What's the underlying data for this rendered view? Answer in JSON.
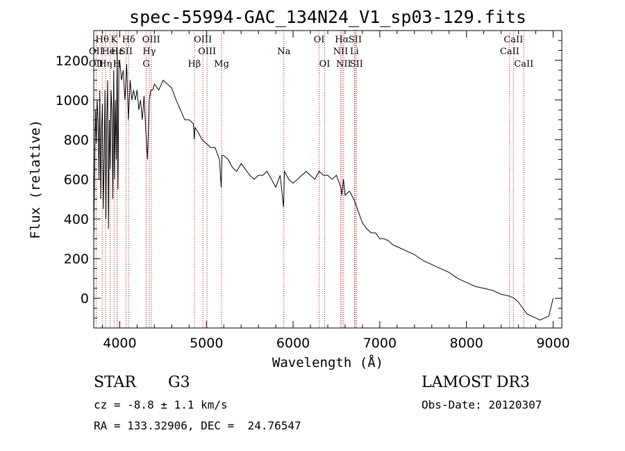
{
  "chart_data": {
    "type": "line",
    "title": "spec-55994-GAC_134N24_V1_sp03-129.fits",
    "xlabel": "Wavelength (Å)",
    "ylabel": "Flux (relative)",
    "xlim": [
      3700,
      9100
    ],
    "ylim": [
      -150,
      1350
    ],
    "xticks": [
      4000,
      5000,
      6000,
      7000,
      8000,
      9000
    ],
    "yticks": [
      0,
      200,
      400,
      600,
      800,
      1000,
      1200
    ],
    "series": [
      {
        "name": "Flux",
        "x": [
          3700,
          3710,
          3720,
          3730,
          3740,
          3750,
          3760,
          3770,
          3780,
          3790,
          3800,
          3810,
          3820,
          3830,
          3840,
          3850,
          3860,
          3870,
          3880,
          3890,
          3900,
          3910,
          3920,
          3930,
          3940,
          3950,
          3960,
          3970,
          3980,
          3990,
          4000,
          4020,
          4040,
          4060,
          4080,
          4100,
          4120,
          4140,
          4160,
          4180,
          4200,
          4220,
          4240,
          4260,
          4280,
          4300,
          4320,
          4340,
          4360,
          4380,
          4400,
          4450,
          4500,
          4550,
          4600,
          4650,
          4700,
          4750,
          4800,
          4850,
          4860,
          4870,
          4900,
          4950,
          5000,
          5050,
          5100,
          5150,
          5170,
          5180,
          5200,
          5250,
          5300,
          5350,
          5400,
          5450,
          5500,
          5550,
          5600,
          5650,
          5700,
          5750,
          5800,
          5850,
          5890,
          5900,
          5950,
          6000,
          6050,
          6100,
          6150,
          6200,
          6250,
          6300,
          6350,
          6400,
          6450,
          6500,
          6550,
          6563,
          6580,
          6600,
          6650,
          6700,
          6750,
          6800,
          6850,
          6900,
          6950,
          7000,
          7050,
          7100,
          7150,
          7200,
          7300,
          7400,
          7500,
          7600,
          7700,
          7800,
          7900,
          8000,
          8100,
          8200,
          8300,
          8400,
          8500,
          8550,
          8600,
          8650,
          8700,
          8750,
          8800,
          8850,
          8900,
          8950,
          9000
        ],
        "y": [
          300,
          650,
          950,
          780,
          1000,
          900,
          600,
          1050,
          500,
          850,
          980,
          450,
          700,
          1050,
          400,
          900,
          1100,
          350,
          900,
          650,
          1050,
          950,
          500,
          1150,
          600,
          1000,
          700,
          1250,
          550,
          1150,
          1200,
          1100,
          1150,
          1000,
          1180,
          900,
          1100,
          1000,
          1050,
          1000,
          1050,
          950,
          1000,
          900,
          1020,
          850,
          700,
          1000,
          1050,
          1050,
          1080,
          1050,
          1100,
          1080,
          1060,
          1000,
          950,
          900,
          900,
          880,
          800,
          860,
          840,
          800,
          780,
          760,
          760,
          700,
          560,
          720,
          720,
          700,
          660,
          640,
          680,
          650,
          620,
          600,
          620,
          620,
          640,
          600,
          560,
          620,
          460,
          640,
          600,
          580,
          600,
          620,
          640,
          620,
          600,
          640,
          620,
          620,
          600,
          620,
          560,
          520,
          600,
          520,
          540,
          500,
          440,
          380,
          350,
          330,
          330,
          300,
          300,
          290,
          270,
          260,
          240,
          220,
          190,
          170,
          150,
          130,
          100,
          80,
          60,
          50,
          40,
          20,
          10,
          0,
          -20,
          -50,
          -80,
          -90,
          -100,
          -110,
          -100,
          -90,
          0
        ]
      }
    ],
    "line_markers": [
      {
        "label": "Hθ",
        "wavelength": 3798,
        "row": 1
      },
      {
        "label": "OII",
        "wavelength": 3727,
        "row": 2
      },
      {
        "label": "OII",
        "wavelength": 3727,
        "row": 3
      },
      {
        "label": "Hη",
        "wavelength": 3835,
        "row": 3
      },
      {
        "label": "K",
        "wavelength": 3934,
        "row": 1
      },
      {
        "label": "HeI",
        "wavelength": 3889,
        "row": 2
      },
      {
        "label": "Hε",
        "wavelength": 3970,
        "row": 2
      },
      {
        "label": "SII",
        "wavelength": 4072,
        "row": 2
      },
      {
        "label": "H",
        "wavelength": 3968,
        "row": 3
      },
      {
        "label": "Hδ",
        "wavelength": 4102,
        "row": 1
      },
      {
        "label": "OIII",
        "wavelength": 4363,
        "row": 1
      },
      {
        "label": "Hγ",
        "wavelength": 4340,
        "row": 2
      },
      {
        "label": "G",
        "wavelength": 4305,
        "row": 3
      },
      {
        "label": "OIII",
        "wavelength": 4959,
        "row": 1
      },
      {
        "label": "OIII",
        "wavelength": 5007,
        "row": 2
      },
      {
        "label": "Hβ",
        "wavelength": 4861,
        "row": 3
      },
      {
        "label": "Mg",
        "wavelength": 5175,
        "row": 3
      },
      {
        "label": "Na",
        "wavelength": 5893,
        "row": 2
      },
      {
        "label": "OI",
        "wavelength": 6300,
        "row": 1
      },
      {
        "label": "OI",
        "wavelength": 6364,
        "row": 3
      },
      {
        "label": "Hα",
        "wavelength": 6563,
        "row": 1
      },
      {
        "label": "SII",
        "wavelength": 6716,
        "row": 1
      },
      {
        "label": "NII",
        "wavelength": 6548,
        "row": 2
      },
      {
        "label": "Li",
        "wavelength": 6708,
        "row": 2
      },
      {
        "label": "NII",
        "wavelength": 6583,
        "row": 3
      },
      {
        "label": "SII",
        "wavelength": 6731,
        "row": 3
      },
      {
        "label": "CaII",
        "wavelength": 8542,
        "row": 1
      },
      {
        "label": "CaII",
        "wavelength": 8498,
        "row": 2
      },
      {
        "label": "CaII",
        "wavelength": 8662,
        "row": 3
      }
    ]
  },
  "info": {
    "class": "STAR",
    "subclass": "G3",
    "survey": "LAMOST DR3",
    "cz": "cz = -8.8 ± 1.1 km/s",
    "obs_date": "Obs-Date: 20120307",
    "radec": "RA = 133.32906, DEC =  24.76547"
  }
}
